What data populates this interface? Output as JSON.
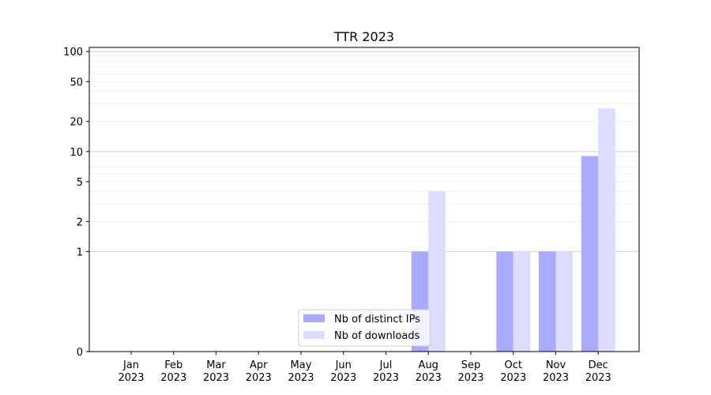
{
  "chart_data": {
    "type": "bar",
    "title": "TTR 2023",
    "xlabel": "",
    "ylabel": "",
    "y_scale": "symlog",
    "ylim": [
      0,
      110
    ],
    "y_ticks": [
      0,
      1,
      2,
      5,
      10,
      20,
      50,
      100
    ],
    "categories": [
      [
        "Jan",
        "2023"
      ],
      [
        "Feb",
        "2023"
      ],
      [
        "Mar",
        "2023"
      ],
      [
        "Apr",
        "2023"
      ],
      [
        "May",
        "2023"
      ],
      [
        "Jun",
        "2023"
      ],
      [
        "Jul",
        "2023"
      ],
      [
        "Aug",
        "2023"
      ],
      [
        "Sep",
        "2023"
      ],
      [
        "Oct",
        "2023"
      ],
      [
        "Nov",
        "2023"
      ],
      [
        "Dec",
        "2023"
      ]
    ],
    "series": [
      {
        "name": "Nb of distinct IPs",
        "color": "#aaaaff",
        "values": [
          0,
          0,
          0,
          0,
          0,
          0,
          0,
          1,
          0,
          1,
          1,
          9
        ]
      },
      {
        "name": "Nb of downloads",
        "color": "#dcdcff",
        "values": [
          0,
          0,
          0,
          0,
          0,
          0,
          0,
          4,
          0,
          1,
          1,
          27
        ]
      }
    ],
    "legend_position": "lower-center",
    "grid": true
  }
}
